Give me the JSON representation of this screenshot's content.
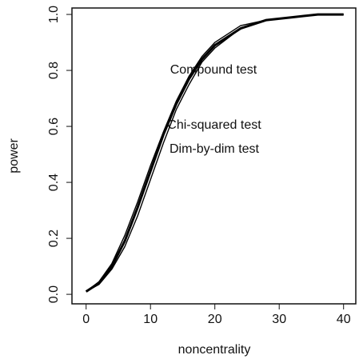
{
  "chart_data": {
    "type": "line",
    "x_label": "noncentrality",
    "y_label": "power",
    "x": [
      0,
      2,
      4,
      6,
      8,
      10,
      12,
      14,
      16,
      18,
      20,
      24,
      28,
      32,
      36,
      40
    ],
    "series": [
      {
        "name": "Compound test",
        "color": "#000000",
        "values": [
          0.01,
          0.04,
          0.1,
          0.19,
          0.31,
          0.44,
          0.57,
          0.68,
          0.77,
          0.84,
          0.89,
          0.95,
          0.98,
          0.99,
          1.0,
          1.0
        ]
      },
      {
        "name": "Chi-squared test",
        "color": "#000000",
        "values": [
          0.01,
          0.035,
          0.09,
          0.17,
          0.28,
          0.41,
          0.54,
          0.66,
          0.75,
          0.83,
          0.88,
          0.95,
          0.98,
          0.99,
          1.0,
          1.0
        ]
      },
      {
        "name": "Dim-by-dim test",
        "color": "#000000",
        "values": [
          0.01,
          0.045,
          0.11,
          0.21,
          0.33,
          0.46,
          0.58,
          0.69,
          0.78,
          0.85,
          0.9,
          0.96,
          0.98,
          0.99,
          1.0,
          1.0
        ]
      }
    ],
    "xlim": [
      -2.2,
      41.9
    ],
    "ylim": [
      -0.034,
      1.023
    ],
    "xticks": [
      0,
      10,
      20,
      30,
      40
    ],
    "yticks": [
      {
        "value": 0,
        "label": "0.0"
      },
      0.2,
      0.4,
      0.6,
      0.8,
      {
        "value": 1,
        "label": "1.0"
      }
    ]
  }
}
